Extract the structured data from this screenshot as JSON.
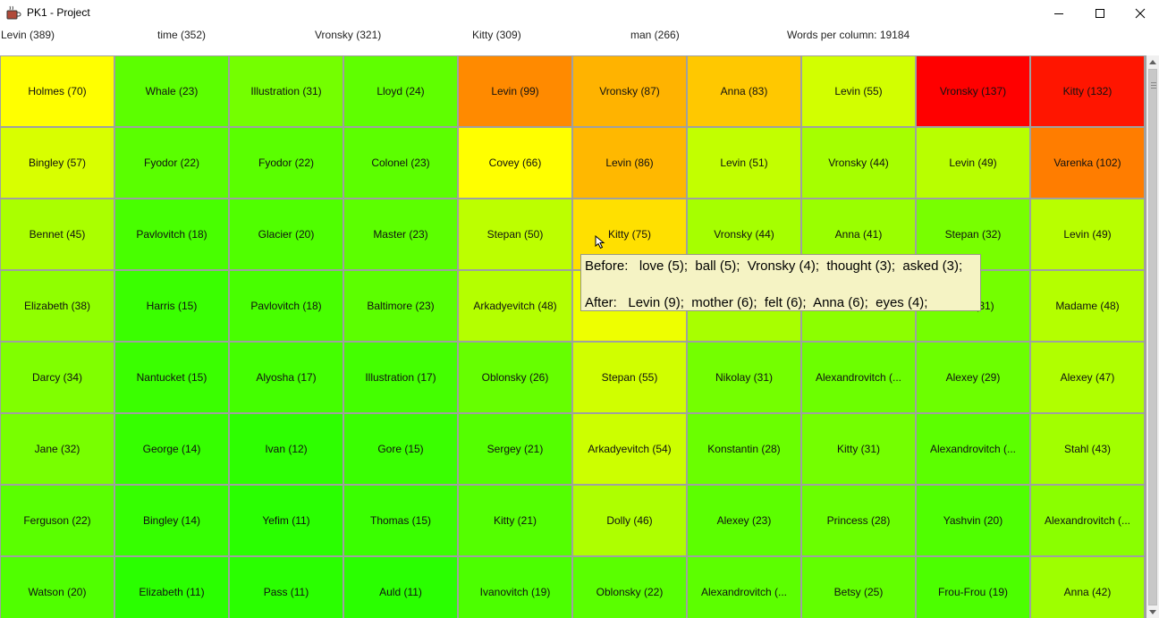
{
  "window": {
    "title": "PK1 - Project",
    "icons": {
      "app": "java-cup-icon",
      "minimize": "minimize-icon",
      "maximize": "maximize-icon",
      "close": "close-icon"
    }
  },
  "top_words": [
    {
      "label": "Levin (389)"
    },
    {
      "label": "time (352)"
    },
    {
      "label": "Vronsky (321)"
    },
    {
      "label": "Kitty (309)"
    },
    {
      "label": "man (266)"
    },
    {
      "label": "Words per column: 19184"
    }
  ],
  "colors": {
    "yellow": "#ffff00",
    "orange": "#ff8c00",
    "red": "#ff0000",
    "green": "#22ff00",
    "tooltip_bg": "#f5f3c4"
  },
  "grid": {
    "rows": [
      [
        {
          "label": "Holmes (70)",
          "color": "#ffff00"
        },
        {
          "label": "Whale (23)",
          "color": "#5cff00"
        },
        {
          "label": "Illustration (31)",
          "color": "#74ff00"
        },
        {
          "label": "Lloyd (24)",
          "color": "#5fff00"
        },
        {
          "label": "Levin (99)",
          "color": "#ff8a00"
        },
        {
          "label": "Vronsky (87)",
          "color": "#ffb300"
        },
        {
          "label": "Anna (83)",
          "color": "#ffc800"
        },
        {
          "label": "Levin (55)",
          "color": "#d2ff00"
        },
        {
          "label": "Vronsky (137)",
          "color": "#ff0000"
        },
        {
          "label": "Kitty (132)",
          "color": "#ff1500"
        }
      ],
      [
        {
          "label": "Bingley (57)",
          "color": "#d8ff00"
        },
        {
          "label": "Fyodor (22)",
          "color": "#5aff00"
        },
        {
          "label": "Fyodor (22)",
          "color": "#5aff00"
        },
        {
          "label": "Colonel (23)",
          "color": "#5cff00"
        },
        {
          "label": "Covey (66)",
          "color": "#ffff00"
        },
        {
          "label": "Levin (86)",
          "color": "#ffb800"
        },
        {
          "label": "Levin (51)",
          "color": "#c2ff00"
        },
        {
          "label": "Vronsky (44)",
          "color": "#a6ff00"
        },
        {
          "label": "Levin (49)",
          "color": "#b8ff00"
        },
        {
          "label": "Varenka (102)",
          "color": "#ff7d00"
        }
      ],
      [
        {
          "label": "Bennet (45)",
          "color": "#aaff00"
        },
        {
          "label": "Pavlovitch (18)",
          "color": "#48ff00"
        },
        {
          "label": "Glacier (20)",
          "color": "#50ff00"
        },
        {
          "label": "Master (23)",
          "color": "#5cff00"
        },
        {
          "label": "Stepan (50)",
          "color": "#bcff00"
        },
        {
          "label": "Kitty (75)",
          "color": "#ffe000"
        },
        {
          "label": "Vronsky (44)",
          "color": "#a6ff00"
        },
        {
          "label": "Anna (41)",
          "color": "#9aff00"
        },
        {
          "label": "Stepan (32)",
          "color": "#78ff00"
        },
        {
          "label": "Levin (49)",
          "color": "#b8ff00"
        }
      ],
      [
        {
          "label": "Elizabeth (38)",
          "color": "#90ff00"
        },
        {
          "label": "Harris (15)",
          "color": "#3aff00"
        },
        {
          "label": "Pavlovitch (18)",
          "color": "#48ff00"
        },
        {
          "label": "Baltimore (23)",
          "color": "#5cff00"
        },
        {
          "label": "Arkadyevitch (48)",
          "color": "#b4ff00"
        },
        {
          "label": "",
          "color": "#eeff00"
        },
        {
          "label": "",
          "color": "#a8ff00"
        },
        {
          "label": "",
          "color": "#8cff00"
        },
        {
          "label": "...ch (31)",
          "color": "#74ff00"
        },
        {
          "label": "Madame (48)",
          "color": "#b4ff00"
        }
      ],
      [
        {
          "label": "Darcy (34)",
          "color": "#80ff00"
        },
        {
          "label": "Nantucket (15)",
          "color": "#3aff00"
        },
        {
          "label": "Alyosha (17)",
          "color": "#44ff00"
        },
        {
          "label": "Illustration (17)",
          "color": "#44ff00"
        },
        {
          "label": "Oblonsky (26)",
          "color": "#66ff00"
        },
        {
          "label": "Stepan (55)",
          "color": "#d0ff00"
        },
        {
          "label": "Nikolay (31)",
          "color": "#74ff00"
        },
        {
          "label": "Alexandrovitch (...",
          "color": "#6cff00"
        },
        {
          "label": "Alexey (29)",
          "color": "#6cff00"
        },
        {
          "label": "Alexey (47)",
          "color": "#b0ff00"
        }
      ],
      [
        {
          "label": "Jane (32)",
          "color": "#78ff00"
        },
        {
          "label": "George (14)",
          "color": "#36ff00"
        },
        {
          "label": "Ivan (12)",
          "color": "#2eff00"
        },
        {
          "label": "Gore (15)",
          "color": "#3aff00"
        },
        {
          "label": "Sergey (21)",
          "color": "#54ff00"
        },
        {
          "label": "Arkadyevitch (54)",
          "color": "#ccff00"
        },
        {
          "label": "Konstantin (28)",
          "color": "#6aff00"
        },
        {
          "label": "Kitty (31)",
          "color": "#74ff00"
        },
        {
          "label": "Alexandrovitch (...",
          "color": "#5cff00"
        },
        {
          "label": "Stahl (43)",
          "color": "#a2ff00"
        }
      ],
      [
        {
          "label": "Ferguson (22)",
          "color": "#5aff00"
        },
        {
          "label": "Bingley (14)",
          "color": "#36ff00"
        },
        {
          "label": "Yefim (11)",
          "color": "#2aff00"
        },
        {
          "label": "Thomas (15)",
          "color": "#3aff00"
        },
        {
          "label": "Kitty (21)",
          "color": "#54ff00"
        },
        {
          "label": "Dolly (46)",
          "color": "#aeff00"
        },
        {
          "label": "Alexey (23)",
          "color": "#5cff00"
        },
        {
          "label": "Princess (28)",
          "color": "#6aff00"
        },
        {
          "label": "Yashvin (20)",
          "color": "#50ff00"
        },
        {
          "label": "Alexandrovitch (...",
          "color": "#8aff00"
        }
      ],
      [
        {
          "label": "Watson (20)",
          "color": "#50ff00"
        },
        {
          "label": "Elizabeth (11)",
          "color": "#2aff00"
        },
        {
          "label": "Pass (11)",
          "color": "#2aff00"
        },
        {
          "label": "Auld (11)",
          "color": "#2aff00"
        },
        {
          "label": "Ivanovitch (19)",
          "color": "#4cff00"
        },
        {
          "label": "Oblonsky (22)",
          "color": "#5aff00"
        },
        {
          "label": "Alexandrovitch (...",
          "color": "#5cff00"
        },
        {
          "label": "Betsy (25)",
          "color": "#62ff00"
        },
        {
          "label": "Frou-Frou (19)",
          "color": "#4cff00"
        },
        {
          "label": "Anna (42)",
          "color": "#9eff00"
        }
      ]
    ]
  },
  "tooltip": {
    "before": "Before:   love (5);  ball (5);  Vronsky (4);  thought (3);  asked (3);",
    "after": "After:   Levin (9);  mother (6);  felt (6);  Anna (6);  eyes (4);"
  },
  "scrollbar": {
    "up_icon": "scroll-up-arrow-icon",
    "down_icon": "scroll-down-arrow-icon"
  },
  "cursor_icon": "mouse-pointer-icon"
}
